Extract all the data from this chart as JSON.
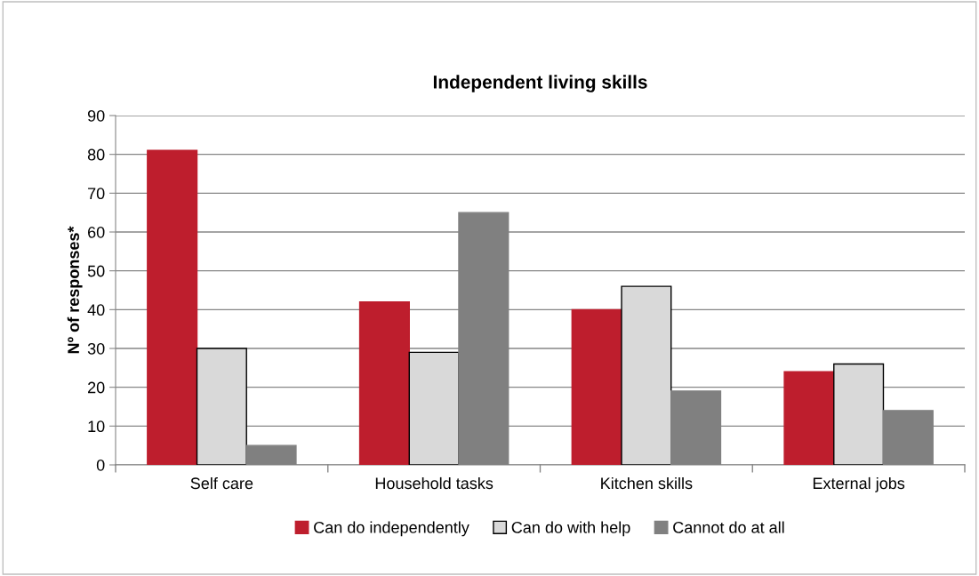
{
  "chart_data": {
    "type": "bar",
    "title": "Independent living skills",
    "ylabel": "Nº of responses*",
    "categories": [
      "Self care",
      "Household tasks",
      "Kitchen skills",
      "External jobs"
    ],
    "series": [
      {
        "name": "Can do independently",
        "color": "#be1e2d",
        "values": [
          81,
          42,
          40,
          24
        ]
      },
      {
        "name": "Can do with help",
        "color": "#d9d9d9",
        "values": [
          30,
          29,
          46,
          26
        ]
      },
      {
        "name": "Cannot do at all",
        "color": "#808080",
        "values": [
          5,
          65,
          19,
          14
        ]
      }
    ],
    "ylim": [
      0,
      90
    ],
    "yticks": [
      0,
      10,
      20,
      30,
      40,
      50,
      60,
      70,
      80,
      90
    ],
    "grid": "y",
    "legend": "bottom"
  }
}
